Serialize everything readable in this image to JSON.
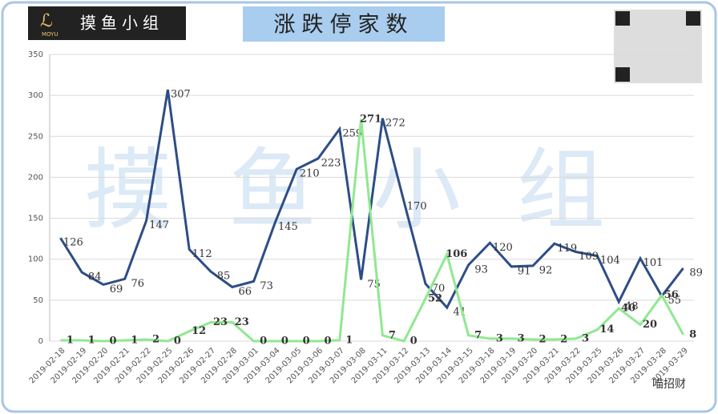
{
  "chart_data": {
    "type": "line",
    "title": "涨跌停家数",
    "watermark": "摸鱼小组",
    "logo_text": "摸鱼小组",
    "logo_sub": "MOYU",
    "footer": "喵招财",
    "categories": [
      "2019-02-18",
      "2019-02-19",
      "2019-02-20",
      "2019-02-21",
      "2019-02-22",
      "2019-02-25",
      "2019-02-26",
      "2019-02-27",
      "2019-02-28",
      "2019-03-01",
      "2019-03-04",
      "2019-03-05",
      "2019-03-06",
      "2019-03-07",
      "2019-03-08",
      "2019-03-11",
      "2019-03-12",
      "2019-03-13",
      "2019-03-14",
      "2019-03-15",
      "2019-03-18",
      "2019-03-19",
      "2019-03-20",
      "2019-03-21",
      "2019-03-22",
      "2019-03-25",
      "2019-03-26",
      "2019-03-27",
      "2019-03-28",
      "2019-03-29"
    ],
    "series": [
      {
        "color": "#2e4d87",
        "values": [
          126,
          84,
          69,
          76,
          147,
          307,
          112,
          85,
          66,
          73,
          145,
          210,
          223,
          259,
          75,
          272,
          170,
          70,
          41,
          93,
          120,
          91,
          92,
          119,
          109,
          104,
          48,
          101,
          55,
          89
        ]
      },
      {
        "color": "#90e890",
        "values": [
          1,
          1,
          0,
          1,
          2,
          0,
          12,
          23,
          23,
          0,
          0,
          0,
          0,
          1,
          271,
          7,
          0,
          52,
          106,
          7,
          3,
          3,
          2,
          2,
          3,
          14,
          40,
          20,
          56,
          8
        ]
      }
    ],
    "ylim": [
      0,
      350
    ],
    "yticks": [
      0,
      50,
      100,
      150,
      200,
      250,
      300,
      350
    ],
    "grid": true
  }
}
